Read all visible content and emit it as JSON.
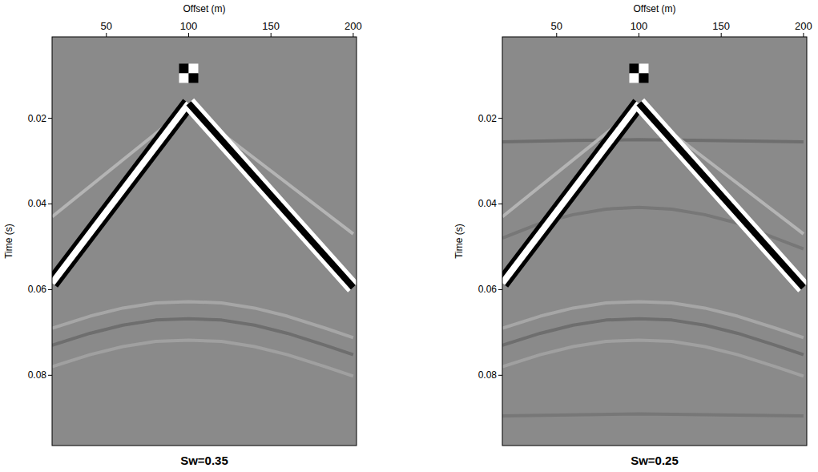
{
  "chart_data": [
    {
      "type": "line",
      "title": "Sw=0.35",
      "x_label": "Offset (m)",
      "y_label": "Time (s)",
      "xlim": [
        17,
        202
      ],
      "ylim": [
        0.001,
        0.0964
      ],
      "xticks": [
        50,
        100,
        150,
        200
      ],
      "yticks": [
        0.02,
        0.04,
        0.06,
        0.08
      ],
      "series": [
        {
          "x": [
            85,
            17
          ],
          "values": [
            0.022,
            0.043
          ],
          "color": "#b4b4b4",
          "line_style": "solid"
        },
        {
          "x": [
            115,
            200
          ],
          "values": [
            0.022,
            0.047
          ],
          "color": "#b4b4b4",
          "line_style": "solid"
        },
        {
          "x": [
            17,
            40,
            60,
            80,
            100,
            120,
            140,
            160,
            183,
            200
          ],
          "values": [
            0.069,
            0.0662,
            0.0643,
            0.0631,
            0.0628,
            0.0631,
            0.0643,
            0.0662,
            0.069,
            0.0712
          ],
          "color": "#a6a6a6",
          "line_style": "solid"
        },
        {
          "x": [
            17,
            40,
            60,
            80,
            100,
            120,
            140,
            160,
            183,
            200
          ],
          "values": [
            0.073,
            0.0702,
            0.0683,
            0.0671,
            0.0668,
            0.0671,
            0.0683,
            0.0702,
            0.073,
            0.0752
          ],
          "color": "#6e6e6e",
          "line_style": "solid"
        },
        {
          "x": [
            17,
            40,
            60,
            80,
            100,
            120,
            140,
            160,
            183,
            200
          ],
          "values": [
            0.078,
            0.0752,
            0.0733,
            0.0721,
            0.0718,
            0.0721,
            0.0733,
            0.0752,
            0.078,
            0.0802
          ],
          "color": "#a0a0a0",
          "line_style": "solid"
        },
        {
          "x": [
            17,
            100
          ],
          "values": [
            0.0585,
            0.0165
          ],
          "color": "#ffffff",
          "line_style": "solid"
        },
        {
          "x": [
            100,
            200
          ],
          "values": [
            0.0165,
            0.0595
          ],
          "color": "#000000",
          "line_style": "solid"
        },
        {
          "type": "scatter",
          "marker": "square",
          "x": [
            100
          ],
          "values": [
            0.0095
          ]
        }
      ]
    },
    {
      "type": "line",
      "title": "Sw=0.25",
      "x_label": "Offset (m)",
      "y_label": "Time (s)",
      "xlim": [
        17,
        202
      ],
      "ylim": [
        0.001,
        0.0964
      ],
      "xticks": [
        50,
        100,
        150,
        200
      ],
      "yticks": [
        0.02,
        0.04,
        0.06,
        0.08
      ],
      "series": [
        {
          "x": [
            17,
            60,
            100,
            140,
            200
          ],
          "values": [
            0.0255,
            0.0252,
            0.025,
            0.0252,
            0.0255
          ],
          "color": "#6e6e6e",
          "line_style": "solid"
        },
        {
          "x": [
            85,
            17
          ],
          "values": [
            0.022,
            0.043
          ],
          "color": "#b4b4b4",
          "line_style": "solid"
        },
        {
          "x": [
            115,
            200
          ],
          "values": [
            0.022,
            0.047
          ],
          "color": "#b4b4b4",
          "line_style": "solid"
        },
        {
          "x": [
            17,
            40,
            60,
            80,
            100,
            120,
            140,
            160,
            183,
            200
          ],
          "values": [
            0.048,
            0.0445,
            0.0425,
            0.0412,
            0.0408,
            0.0412,
            0.0425,
            0.0445,
            0.048,
            0.0505
          ],
          "color": "#777777",
          "line_style": "solid"
        },
        {
          "x": [
            17,
            40,
            60,
            80,
            100,
            120,
            140,
            160,
            183,
            200
          ],
          "values": [
            0.069,
            0.0662,
            0.0643,
            0.0631,
            0.0628,
            0.0631,
            0.0643,
            0.0662,
            0.069,
            0.0712
          ],
          "color": "#a6a6a6",
          "line_style": "solid"
        },
        {
          "x": [
            17,
            40,
            60,
            80,
            100,
            120,
            140,
            160,
            183,
            200
          ],
          "values": [
            0.073,
            0.0702,
            0.0683,
            0.0671,
            0.0668,
            0.0671,
            0.0683,
            0.0702,
            0.073,
            0.0752
          ],
          "color": "#6e6e6e",
          "line_style": "solid"
        },
        {
          "x": [
            17,
            40,
            60,
            80,
            100,
            120,
            140,
            160,
            183,
            200
          ],
          "values": [
            0.078,
            0.0752,
            0.0733,
            0.0721,
            0.0718,
            0.0721,
            0.0733,
            0.0752,
            0.078,
            0.0802
          ],
          "color": "#a0a0a0",
          "line_style": "solid"
        },
        {
          "x": [
            17,
            100,
            200
          ],
          "values": [
            0.0895,
            0.089,
            0.0895
          ],
          "color": "#777777",
          "line_style": "solid"
        },
        {
          "x": [
            17,
            100
          ],
          "values": [
            0.0585,
            0.0165
          ],
          "color": "#ffffff",
          "line_style": "solid"
        },
        {
          "x": [
            100,
            200
          ],
          "values": [
            0.0165,
            0.0595
          ],
          "color": "#000000",
          "line_style": "solid"
        },
        {
          "type": "scatter",
          "marker": "square",
          "x": [
            100
          ],
          "values": [
            0.0095
          ]
        }
      ]
    }
  ]
}
